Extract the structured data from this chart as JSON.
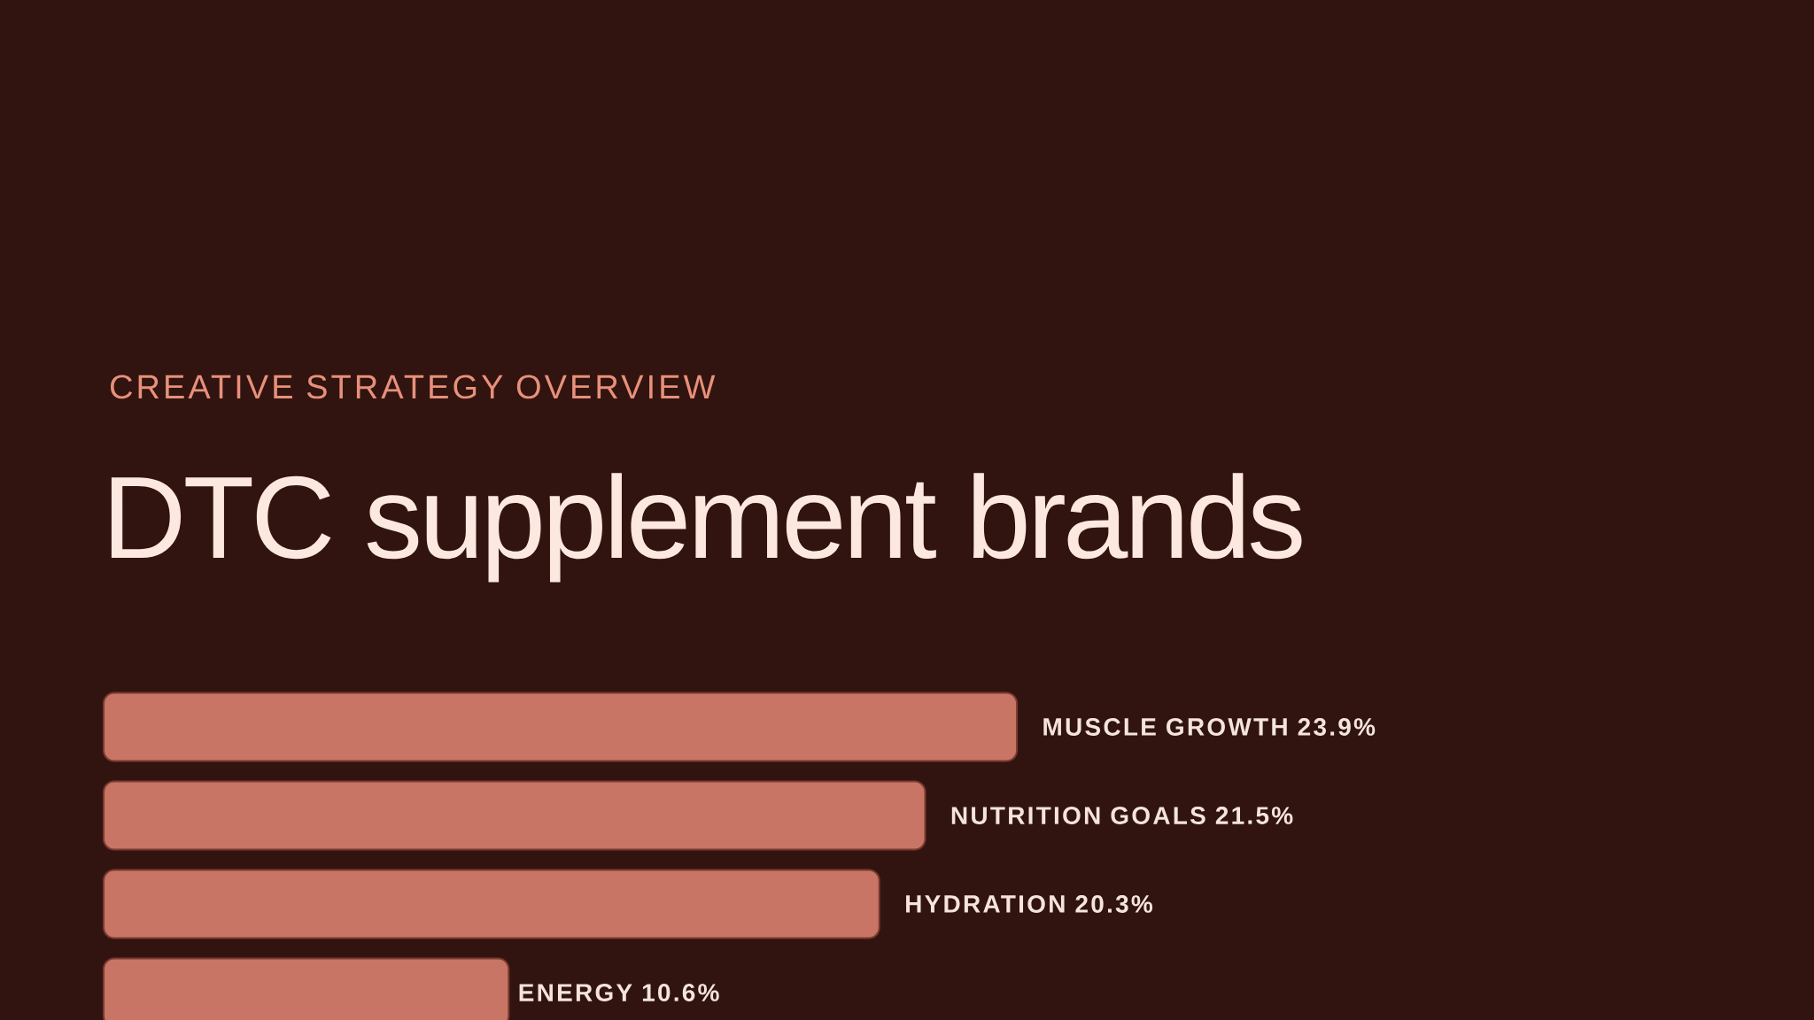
{
  "chart_data": {
    "type": "bar",
    "orientation": "horizontal",
    "subtitle": "CREATIVE STRATEGY OVERVIEW",
    "title": "DTC supplement brands",
    "categories": [
      null,
      null,
      null,
      null
    ],
    "values": [
      23.9,
      21.5,
      20.3,
      10.6
    ],
    "value_labels": [
      "MUSCLE GROWTH 23.9%",
      "NUTRITION GOALS 21.5%",
      "HYDRATION 20.3%",
      "ENERGY 10.6%"
    ],
    "color": "#c87565"
  }
}
